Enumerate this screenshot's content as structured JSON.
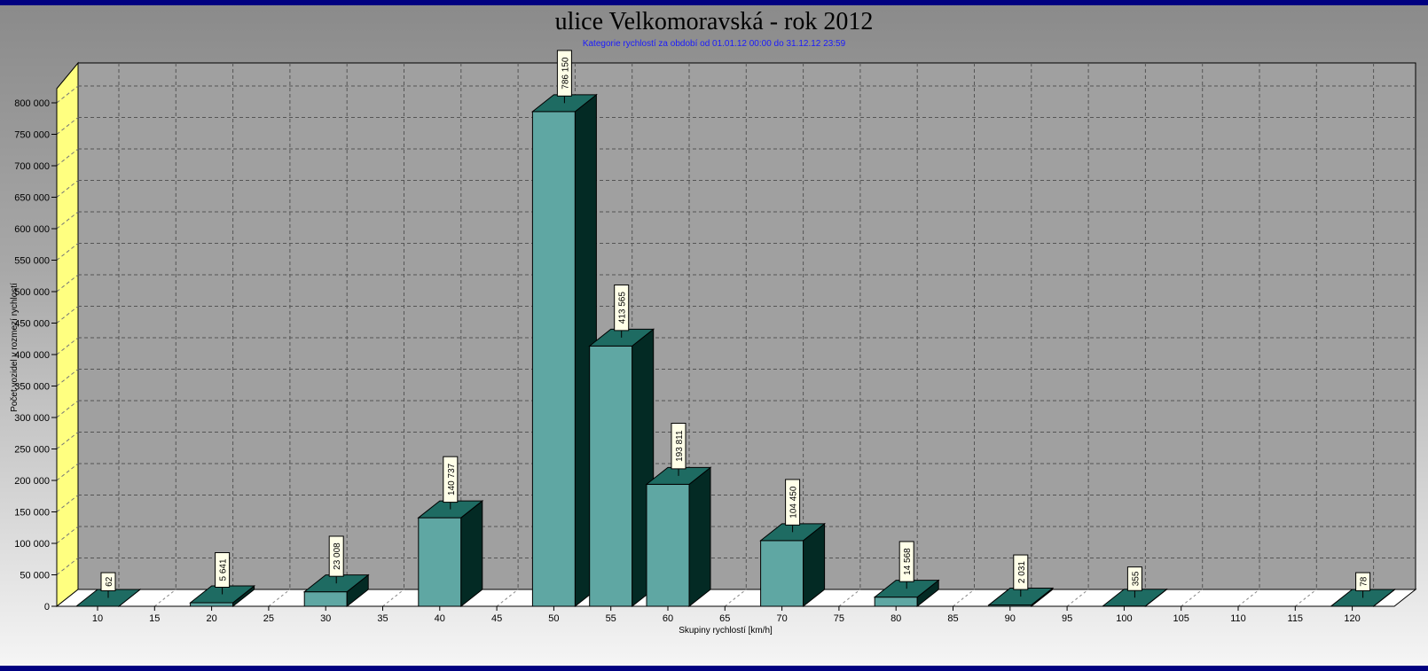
{
  "chart_data": {
    "type": "bar",
    "title": "ulice Velkomoravská - rok 2012",
    "subtitle": "Kategorie rychlostí za období od 01.01.12 00:00 do 31.12.12 23:59",
    "xlabel": "Skupiny rychlostí [km/h]",
    "ylabel": "Počet vozidel v rozmezí rychlostí",
    "ylim": [
      0,
      800000
    ],
    "yticks": [
      0,
      50000,
      100000,
      150000,
      200000,
      250000,
      300000,
      350000,
      400000,
      450000,
      500000,
      550000,
      600000,
      650000,
      700000,
      750000,
      800000
    ],
    "ytick_labels": [
      "0",
      "50 000",
      "100 000",
      "150 000",
      "200 000",
      "250 000",
      "300 000",
      "350 000",
      "400 000",
      "450 000",
      "500 000",
      "550 000",
      "600 000",
      "650 000",
      "700 000",
      "750 000",
      "800 000"
    ],
    "categories": [
      "10",
      "15",
      "20",
      "25",
      "30",
      "35",
      "40",
      "45",
      "50",
      "55",
      "60",
      "65",
      "70",
      "75",
      "80",
      "85",
      "90",
      "95",
      "100",
      "105",
      "110",
      "115",
      "120"
    ],
    "values": [
      62,
      null,
      5641,
      null,
      23008,
      null,
      140737,
      null,
      786150,
      413565,
      193811,
      null,
      104450,
      null,
      14568,
      null,
      2031,
      null,
      355,
      null,
      null,
      null,
      78
    ],
    "value_labels": [
      "62",
      "",
      "5 641",
      "",
      "23 008",
      "",
      "140 737",
      "",
      "786 150",
      "413 565",
      "193 811",
      "",
      "104 450",
      "",
      "14 568",
      "",
      "2 031",
      "",
      "355",
      "",
      "",
      "",
      "78"
    ],
    "grid": true,
    "style": "3d",
    "colors": {
      "bar_front": "#5fa7a3",
      "bar_top": "#1e6b62",
      "bar_side": "#032a24",
      "wall": "#ffff80",
      "frame_edge": "#000080",
      "subtitle": "#1a1aff"
    }
  }
}
